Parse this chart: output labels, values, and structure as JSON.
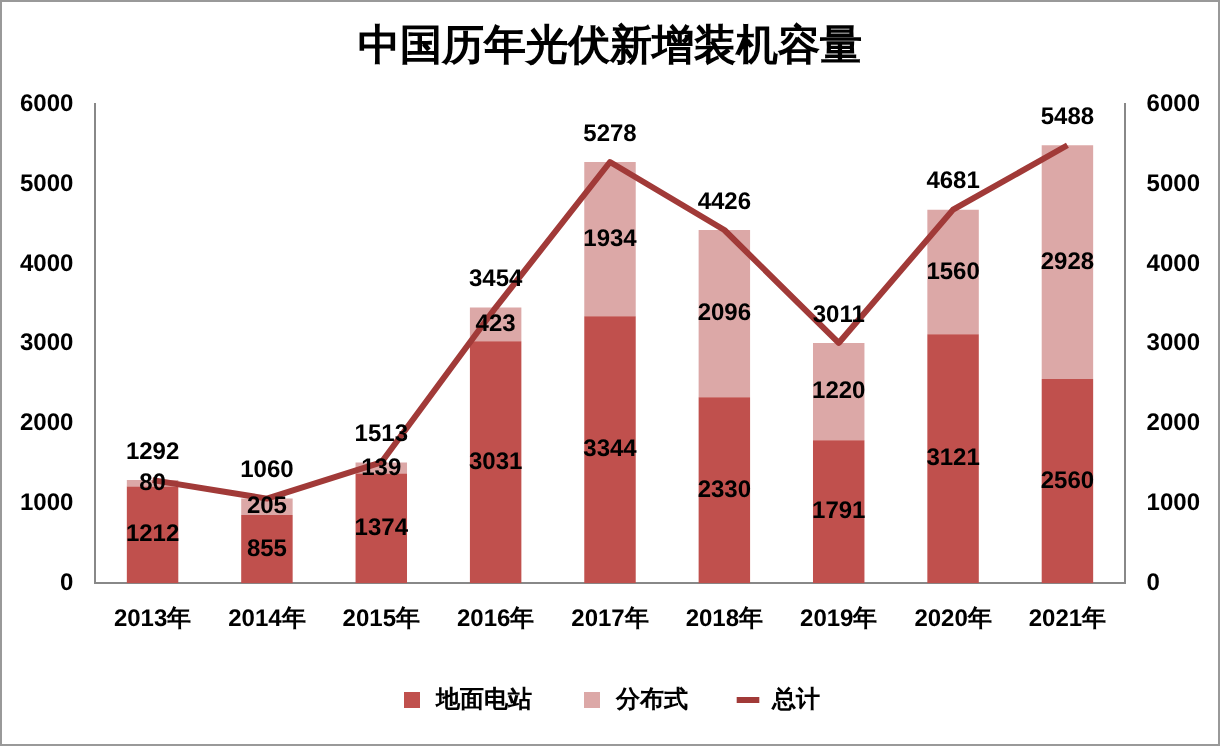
{
  "chart_data": {
    "type": "bar",
    "title": "中国历年光伏新增装机容量",
    "categories": [
      "2013年",
      "2014年",
      "2015年",
      "2016年",
      "2017年",
      "2018年",
      "2019年",
      "2020年",
      "2021年"
    ],
    "stacked": true,
    "series": [
      {
        "name": "地面电站",
        "color": "#c0504d",
        "values": [
          1212,
          855,
          1374,
          3031,
          3344,
          2330,
          1791,
          3121,
          2560
        ]
      },
      {
        "name": "分布式",
        "color": "#dca8a7",
        "values": [
          80,
          205,
          139,
          423,
          1934,
          2096,
          1220,
          1560,
          2928
        ]
      },
      {
        "name": "总计",
        "type": "line",
        "color": "#a13a38",
        "values": [
          1292,
          1060,
          1513,
          3454,
          5278,
          4426,
          3011,
          4681,
          5488
        ]
      }
    ],
    "ylim": [
      0,
      6000
    ],
    "yticks": [
      0,
      1000,
      2000,
      3000,
      4000,
      5000,
      6000
    ],
    "y2lim": [
      0,
      6000
    ],
    "y2ticks": [
      0,
      1000,
      2000,
      3000,
      4000,
      5000,
      6000
    ],
    "data_labels": true,
    "legend": "bottom",
    "marker": "none",
    "line_style": "solid"
  }
}
